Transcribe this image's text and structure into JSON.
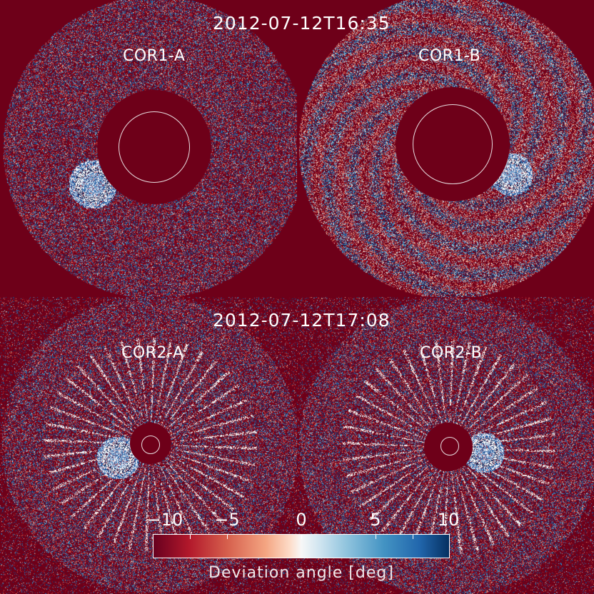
{
  "timestamps": {
    "top": "2012-07-12T16:35",
    "bottom": "2012-07-12T17:08"
  },
  "panels": [
    {
      "label": "COR1-A",
      "instrument": "COR1",
      "spacecraft": "A"
    },
    {
      "label": "COR1-B",
      "instrument": "COR1",
      "spacecraft": "B"
    },
    {
      "label": "COR2-A",
      "instrument": "COR2",
      "spacecraft": "A"
    },
    {
      "label": "COR2-B",
      "instrument": "COR2",
      "spacecraft": "B"
    }
  ],
  "colorbar": {
    "title": "Deviation angle [deg]",
    "range": [
      -12,
      12
    ],
    "ticks": [
      {
        "value": -10,
        "label": "−10"
      },
      {
        "value": -5,
        "label": "−5"
      },
      {
        "value": 0,
        "label": "0"
      },
      {
        "value": 5,
        "label": "5"
      },
      {
        "value": 10,
        "label": "10"
      }
    ],
    "colormap": "diverging red-white-blue",
    "colors": {
      "negative_end": "#67001f",
      "mid": "#f7f7f7",
      "positive_end": "#053061"
    }
  },
  "colors": {
    "background": "#6e0019",
    "limb_circle": "#e8dde0",
    "text": "#ffffff"
  }
}
